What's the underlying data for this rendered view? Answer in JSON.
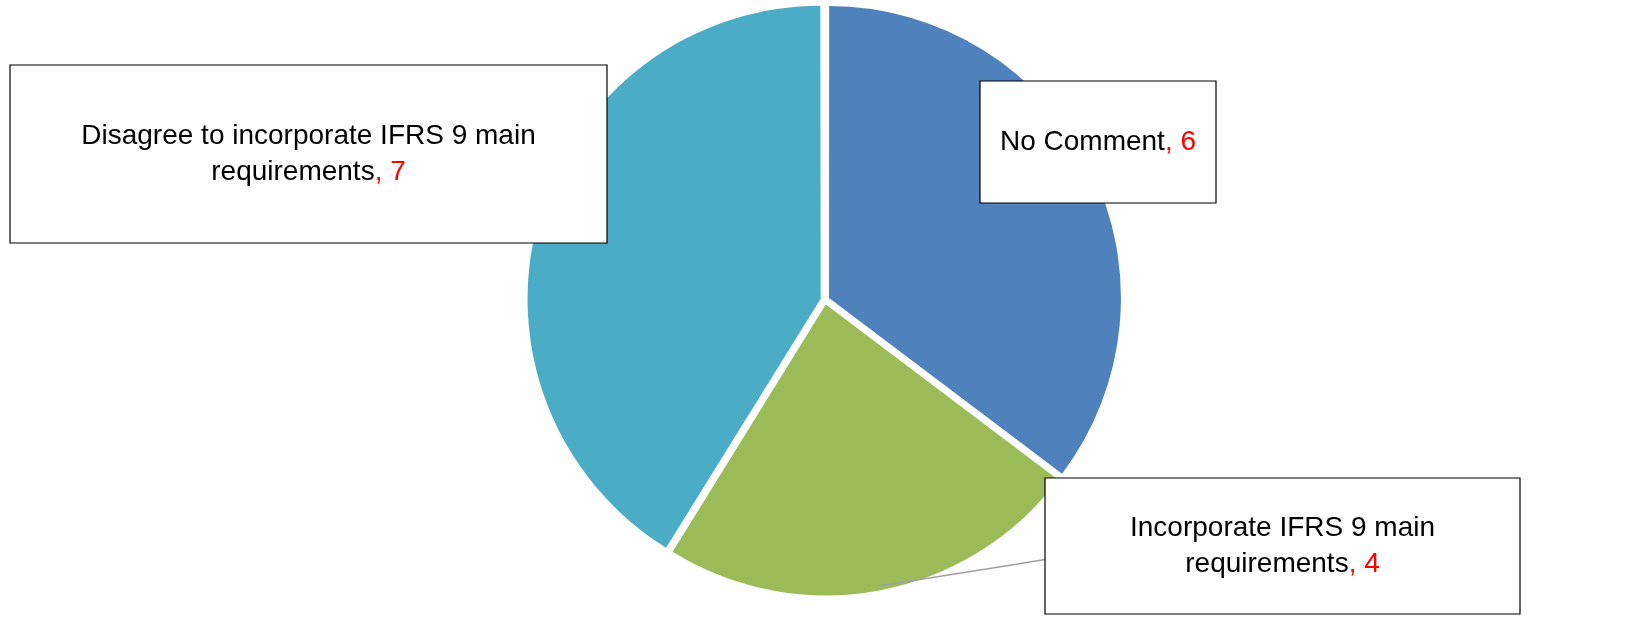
{
  "chart_data": {
    "type": "pie",
    "categories": [
      "No Comment",
      "Incorporate IFRS 9 main requirements",
      "Disagree to incorporate IFRS 9 main requirements"
    ],
    "values": [
      6,
      4,
      7
    ],
    "colors": [
      "#4f81bd",
      "#9bbb59",
      "#4bacc6"
    ],
    "value_labels": [
      ", 6",
      ", 4",
      ", 7"
    ],
    "legend": false
  }
}
